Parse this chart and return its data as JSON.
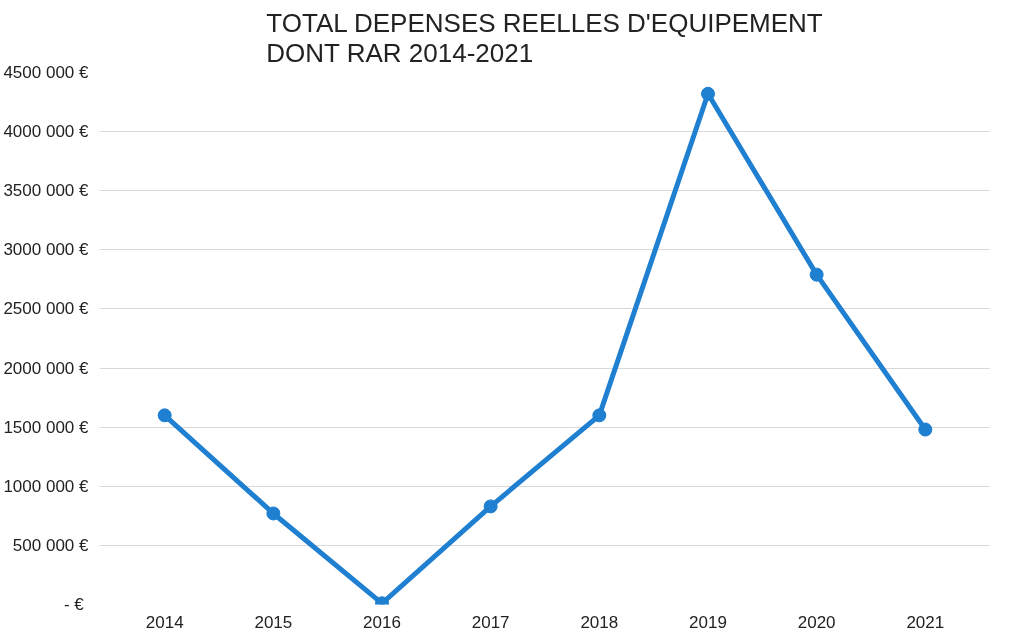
{
  "chart_data": {
    "type": "line",
    "title": "TOTAL DEPENSES REELLES D'EQUIPEMENT\nDONT RAR 2014-2021",
    "categories": [
      "2014",
      "2015",
      "2016",
      "2017",
      "2018",
      "2019",
      "2020",
      "2021"
    ],
    "series": [
      {
        "color": "#1f7fd0",
        "values": [
          1600000,
          770000,
          10000,
          830000,
          1600000,
          4320000,
          2790000,
          1480000
        ]
      }
    ],
    "ylim": [
      0,
      4500000
    ],
    "yticks": [
      {
        "value": 0,
        "label": "-  €"
      },
      {
        "value": 500000,
        "label": "500 000 €"
      },
      {
        "value": 1000000,
        "label": "1000 000 €"
      },
      {
        "value": 1500000,
        "label": "1500 000 €"
      },
      {
        "value": 2000000,
        "label": "2000 000 €"
      },
      {
        "value": 2500000,
        "label": "2500 000 €"
      },
      {
        "value": 3000000,
        "label": "3000 000 €"
      },
      {
        "value": 3500000,
        "label": "3500 000 €"
      },
      {
        "value": 4000000,
        "label": "4000 000 €"
      },
      {
        "value": 4500000,
        "label": "4500 000 €"
      }
    ],
    "grid": "y",
    "marker": "circle",
    "line_style": "solid"
  }
}
